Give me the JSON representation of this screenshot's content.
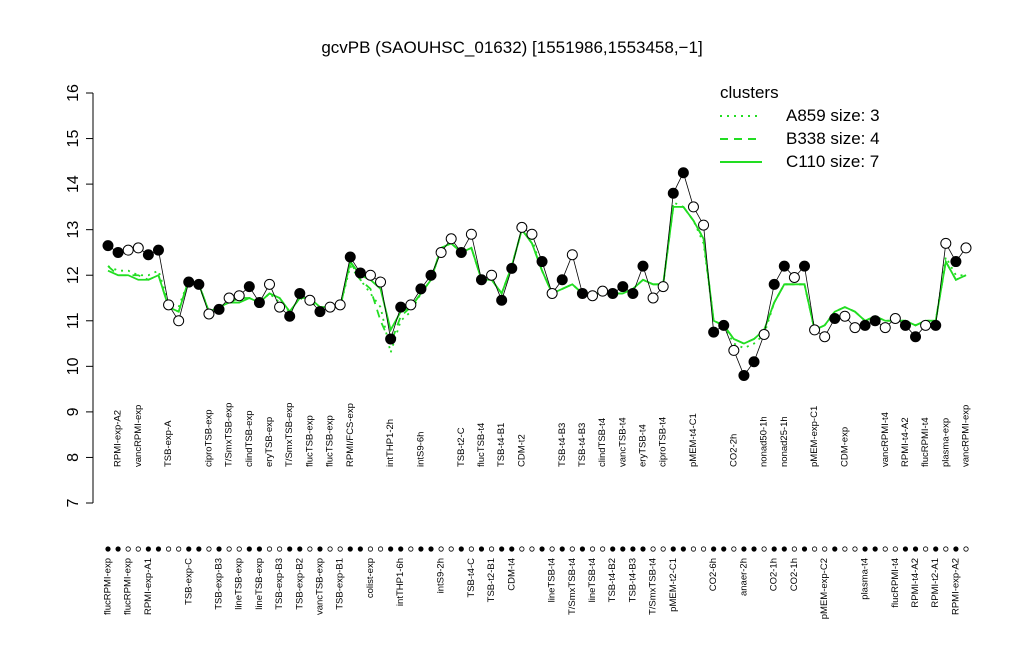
{
  "chart_data": {
    "type": "cluster-profile",
    "title": "gcvPB (SAOUHSC_01632) [1551986,1553458,−1]",
    "legend_title": "clusters",
    "legend_corner": "top-right",
    "legend_color": "#22dd22",
    "point_color": "#000000",
    "ylim": [
      7,
      16
    ],
    "yticks": [
      7,
      8,
      9,
      10,
      11,
      12,
      13,
      14,
      15,
      16
    ],
    "samples": [
      {
        "label": "flucRPMI-exp",
        "y": 12.65,
        "filled": true
      },
      {
        "label": "RPMI-exp-A2",
        "y": 12.5,
        "filled": true
      },
      {
        "label": "flucRPMI-exp",
        "y": 12.55,
        "filled": false
      },
      {
        "label": "vancRPMI-exp",
        "y": 12.6,
        "filled": false
      },
      {
        "label": "RPMI-exp-A1",
        "y": 12.45,
        "filled": true
      },
      {
        "label": null,
        "y": 12.55,
        "filled": true
      },
      {
        "label": "TSB-exp-A",
        "y": 11.35,
        "filled": false
      },
      {
        "label": null,
        "y": 11.0,
        "filled": false
      },
      {
        "label": "TSB-exp-C",
        "y": 11.85,
        "filled": true
      },
      {
        "label": null,
        "y": 11.8,
        "filled": true
      },
      {
        "label": "ciproTSB-exp",
        "y": 11.15,
        "filled": false
      },
      {
        "label": "TSB-exp-B3",
        "y": 11.25,
        "filled": true
      },
      {
        "label": "T/SmxTSB-exp",
        "y": 11.5,
        "filled": false
      },
      {
        "label": "lineTSB-exp",
        "y": 11.55,
        "filled": false
      },
      {
        "label": "clindTSB-exp",
        "y": 11.75,
        "filled": true
      },
      {
        "label": "lineTSB-exp",
        "y": 11.4,
        "filled": true
      },
      {
        "label": "eryTSB-exp",
        "y": 11.8,
        "filled": false
      },
      {
        "label": "TSB-exp-B3",
        "y": 11.3,
        "filled": false
      },
      {
        "label": "T/SmxTSB-exp",
        "y": 11.1,
        "filled": true
      },
      {
        "label": "TSB-exp-B2",
        "y": 11.6,
        "filled": true
      },
      {
        "label": "flucTSB-exp",
        "y": 11.45,
        "filled": false
      },
      {
        "label": "vancTSB-exp",
        "y": 11.2,
        "filled": true
      },
      {
        "label": "flucTSB-exp",
        "y": 11.3,
        "filled": false
      },
      {
        "label": "TSB-exp-B1",
        "y": 11.35,
        "filled": false
      },
      {
        "label": "RPMI/FCS-exp",
        "y": 12.4,
        "filled": true
      },
      {
        "label": null,
        "y": 12.05,
        "filled": true
      },
      {
        "label": "colist-exp",
        "y": 12.0,
        "filled": false
      },
      {
        "label": null,
        "y": 11.85,
        "filled": false
      },
      {
        "label": "intTHP1-2h",
        "y": 10.6,
        "filled": true
      },
      {
        "label": "intTHP1-6h",
        "y": 11.3,
        "filled": true
      },
      {
        "label": null,
        "y": 11.35,
        "filled": false
      },
      {
        "label": "intS9-6h",
        "y": 11.7,
        "filled": true
      },
      {
        "label": null,
        "y": 12.0,
        "filled": true
      },
      {
        "label": "intS9-2h",
        "y": 12.5,
        "filled": false
      },
      {
        "label": null,
        "y": 12.8,
        "filled": false
      },
      {
        "label": "TSB-t2-C",
        "y": 12.5,
        "filled": true
      },
      {
        "label": "TSB-t4-C",
        "y": 12.9,
        "filled": false
      },
      {
        "label": "flucTSB-t4",
        "y": 11.9,
        "filled": true
      },
      {
        "label": "TSB-t2-B1",
        "y": 12.0,
        "filled": false
      },
      {
        "label": "TSB-t4-B1",
        "y": 11.45,
        "filled": true
      },
      {
        "label": "CDM-t4",
        "y": 12.15,
        "filled": true
      },
      {
        "label": "CDM-t2",
        "y": 13.05,
        "filled": false
      },
      {
        "label": null,
        "y": 12.9,
        "filled": false
      },
      {
        "label": null,
        "y": 12.3,
        "filled": true
      },
      {
        "label": "lineTSB-t4",
        "y": 11.6,
        "filled": false
      },
      {
        "label": "TSB-t4-B3",
        "y": 11.9,
        "filled": true
      },
      {
        "label": "T/SmxTSB-t4",
        "y": 12.45,
        "filled": false
      },
      {
        "label": "TSB-t4-B3",
        "y": 11.6,
        "filled": true
      },
      {
        "label": "lineTSB-t4",
        "y": 11.55,
        "filled": false
      },
      {
        "label": "clindTSB-t4",
        "y": 11.65,
        "filled": false
      },
      {
        "label": "TSB-t4-B2",
        "y": 11.6,
        "filled": true
      },
      {
        "label": "vancTSB-t4",
        "y": 11.75,
        "filled": true
      },
      {
        "label": "TSB-t4-B3",
        "y": 11.6,
        "filled": true
      },
      {
        "label": "eryTSB-t4",
        "y": 12.2,
        "filled": true
      },
      {
        "label": "T/SmxTSB-t4",
        "y": 11.5,
        "filled": false
      },
      {
        "label": "ciproTSB-t4",
        "y": 11.75,
        "filled": false
      },
      {
        "label": "pMEM-t2-C1",
        "y": 13.8,
        "filled": true
      },
      {
        "label": null,
        "y": 14.25,
        "filled": true
      },
      {
        "label": "pMEM-t4-C1",
        "y": 13.5,
        "filled": false
      },
      {
        "label": null,
        "y": 13.1,
        "filled": false
      },
      {
        "label": "CO2-6h",
        "y": 10.75,
        "filled": true
      },
      {
        "label": null,
        "y": 10.9,
        "filled": true
      },
      {
        "label": "CO2-2h",
        "y": 10.35,
        "filled": false
      },
      {
        "label": "anaer-2h",
        "y": 9.8,
        "filled": true
      },
      {
        "label": null,
        "y": 10.1,
        "filled": true
      },
      {
        "label": "nonad50-1h",
        "y": 10.7,
        "filled": false
      },
      {
        "label": "CO2-1h",
        "y": 11.8,
        "filled": true
      },
      {
        "label": "nonad25-1h",
        "y": 12.2,
        "filled": true
      },
      {
        "label": "CO2-1h",
        "y": 11.95,
        "filled": false
      },
      {
        "label": null,
        "y": 12.2,
        "filled": true
      },
      {
        "label": "pMEM-exp-C1",
        "y": 10.8,
        "filled": false
      },
      {
        "label": "pMEM-exp-C2",
        "y": 10.65,
        "filled": false
      },
      {
        "label": null,
        "y": 11.05,
        "filled": true
      },
      {
        "label": "CDM-exp",
        "y": 11.1,
        "filled": false
      },
      {
        "label": null,
        "y": 10.85,
        "filled": false
      },
      {
        "label": "plasma-t4",
        "y": 10.9,
        "filled": true
      },
      {
        "label": null,
        "y": 11.0,
        "filled": true
      },
      {
        "label": "vancRPMI-t4",
        "y": 10.85,
        "filled": false
      },
      {
        "label": "flucRPMI-t4",
        "y": 11.05,
        "filled": false
      },
      {
        "label": "RPMI-t4-A2",
        "y": 10.9,
        "filled": true
      },
      {
        "label": "RPMI-t4-A2",
        "y": 10.65,
        "filled": true
      },
      {
        "label": "flucRPMI-t4",
        "y": 10.9,
        "filled": false
      },
      {
        "label": "RPMI-t2-A1",
        "y": 10.9,
        "filled": true
      },
      {
        "label": "plasma-exp",
        "y": 12.7,
        "filled": false
      },
      {
        "label": "RPMI-exp-A2",
        "y": 12.3,
        "filled": true
      },
      {
        "label": "vancRPMI-exp",
        "y": 12.6,
        "filled": false
      }
    ],
    "series": [
      {
        "name": "A859 size: 3",
        "color": "#22dd22",
        "dash": "dotted",
        "values": [
          12.2,
          12.1,
          12.1,
          12.0,
          12.0,
          12.1,
          11.4,
          11.3,
          11.9,
          11.8,
          11.2,
          11.3,
          11.4,
          11.5,
          11.5,
          11.4,
          11.6,
          11.4,
          11.2,
          11.5,
          11.4,
          11.3,
          11.3,
          11.3,
          12.2,
          11.9,
          11.6,
          11.3,
          10.3,
          11.0,
          11.2,
          11.6,
          11.9,
          12.6,
          12.7,
          12.5,
          12.6,
          11.9,
          11.9,
          11.6,
          12.2,
          13.0,
          12.8,
          12.1,
          11.6,
          11.7,
          11.8,
          11.6,
          11.6,
          11.6,
          11.6,
          11.6,
          11.7,
          11.9,
          11.8,
          11.8,
          13.6,
          13.5,
          13.2,
          12.7,
          11.0,
          10.9,
          10.5,
          10.4,
          10.5,
          10.7,
          11.4,
          11.8,
          11.8,
          11.8,
          10.8,
          10.9,
          11.2,
          11.3,
          11.2,
          11.0,
          11.1,
          11.0,
          11.0,
          11.0,
          10.9,
          11.0,
          11.0,
          12.4,
          12.0,
          12.0
        ]
      },
      {
        "name": "B338 size: 4",
        "color": "#22dd22",
        "dash": "dashed",
        "values": [
          12.2,
          12.0,
          12.0,
          12.0,
          11.9,
          12.0,
          11.3,
          11.2,
          11.9,
          11.8,
          11.2,
          11.3,
          11.4,
          11.5,
          11.5,
          11.4,
          11.6,
          11.5,
          11.2,
          11.5,
          11.5,
          11.3,
          11.3,
          11.3,
          12.3,
          11.9,
          11.7,
          11.0,
          10.5,
          11.1,
          11.3,
          11.6,
          11.9,
          12.6,
          12.7,
          12.5,
          12.6,
          11.9,
          11.9,
          11.6,
          12.2,
          13.0,
          12.7,
          12.1,
          11.6,
          11.7,
          11.8,
          11.6,
          11.6,
          11.6,
          11.6,
          11.6,
          11.7,
          11.9,
          11.8,
          11.8,
          13.5,
          13.5,
          13.2,
          12.8,
          11.0,
          10.9,
          10.6,
          10.5,
          10.6,
          10.8,
          11.4,
          11.8,
          11.8,
          11.8,
          10.8,
          10.9,
          11.2,
          11.3,
          11.2,
          11.0,
          11.1,
          11.0,
          11.0,
          11.0,
          10.9,
          11.0,
          11.0,
          12.3,
          11.9,
          12.0
        ]
      },
      {
        "name": "C110 size: 7",
        "color": "#22dd22",
        "dash": "solid",
        "values": [
          12.1,
          12.0,
          12.0,
          11.9,
          11.9,
          12.0,
          11.3,
          11.2,
          11.9,
          11.8,
          11.2,
          11.3,
          11.4,
          11.4,
          11.5,
          11.4,
          11.6,
          11.5,
          11.2,
          11.5,
          11.5,
          11.3,
          11.3,
          11.3,
          12.3,
          12.0,
          11.9,
          11.7,
          10.8,
          11.2,
          11.3,
          11.6,
          11.9,
          12.6,
          12.7,
          12.5,
          12.6,
          11.9,
          11.9,
          11.6,
          12.2,
          13.0,
          12.7,
          12.1,
          11.6,
          11.7,
          11.8,
          11.6,
          11.6,
          11.6,
          11.6,
          11.6,
          11.7,
          11.9,
          11.8,
          11.8,
          13.5,
          13.5,
          13.2,
          12.8,
          11.0,
          10.9,
          10.6,
          10.5,
          10.6,
          10.8,
          11.4,
          11.8,
          11.8,
          11.8,
          10.8,
          10.9,
          11.2,
          11.3,
          11.2,
          11.0,
          11.1,
          11.0,
          11.0,
          11.0,
          10.9,
          11.0,
          11.0,
          12.3,
          11.9,
          12.0
        ]
      }
    ]
  }
}
